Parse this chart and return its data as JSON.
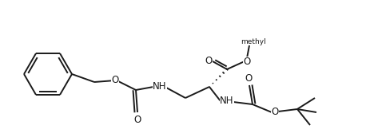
{
  "bg_color": "#ffffff",
  "line_color": "#1a1a1a",
  "line_width": 1.4,
  "font_size": 8.5,
  "fig_width": 4.58,
  "fig_height": 1.72,
  "dpi": 100,
  "xlim": [
    0,
    458
  ],
  "ylim": [
    0,
    172
  ]
}
